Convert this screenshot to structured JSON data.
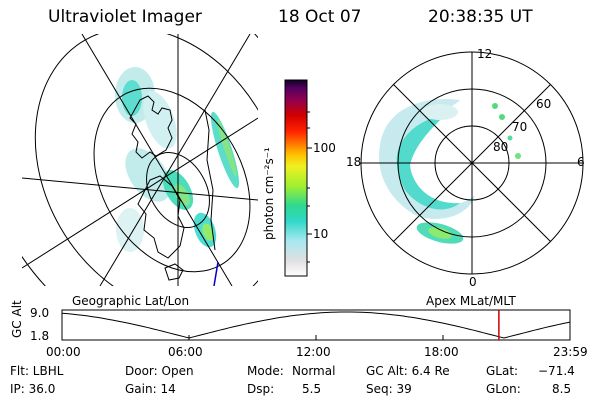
{
  "header": {
    "instrument": "Ultraviolet Imager",
    "date": "18 Oct 07",
    "time": "20:38:35 UT"
  },
  "colorbar": {
    "unit_label": "photon cm⁻²s⁻¹",
    "ticks": [
      "100",
      "10"
    ],
    "scale": "log",
    "colors": [
      "#ffffff",
      "#e6e6e6",
      "#a8e8f0",
      "#40e0d0",
      "#20d8c0",
      "#30d890",
      "#a0f030",
      "#ffff00",
      "#ffc000",
      "#ff7000",
      "#ff2000",
      "#d00000",
      "#a00040",
      "#600060",
      "#100020"
    ]
  },
  "left_map": {
    "caption": "Geographic Lat/Lon"
  },
  "right_map": {
    "caption": "Apex MLat/MLT",
    "mlt_labels": [
      "12",
      "18",
      "6",
      "0"
    ],
    "lat_labels": [
      "60",
      "70",
      "80"
    ]
  },
  "altitude_plot": {
    "ylabel": "GC Alt",
    "yticks": [
      "9.0",
      "1.8"
    ],
    "xticks": [
      "00:00",
      "06:00",
      "12:00",
      "18:00",
      "23:59"
    ],
    "marker_color": "#cc0000",
    "marker_time_fraction": 0.86
  },
  "info": {
    "filter": "Flt: LBHL",
    "ip": "IP: 36.0",
    "door": "Door: Open",
    "gain": "Gain: 14",
    "mode_label": "Mode:",
    "mode_value": "Normal",
    "dsp_label": "Dsp:",
    "dsp_value": "5.5",
    "gcalt": "GC Alt: 6.4 Re",
    "seq": "Seq: 39",
    "glat_label": "GLat:",
    "glat_value": "−71.4",
    "glon_label": "GLon:",
    "glon_value": "8.5"
  }
}
